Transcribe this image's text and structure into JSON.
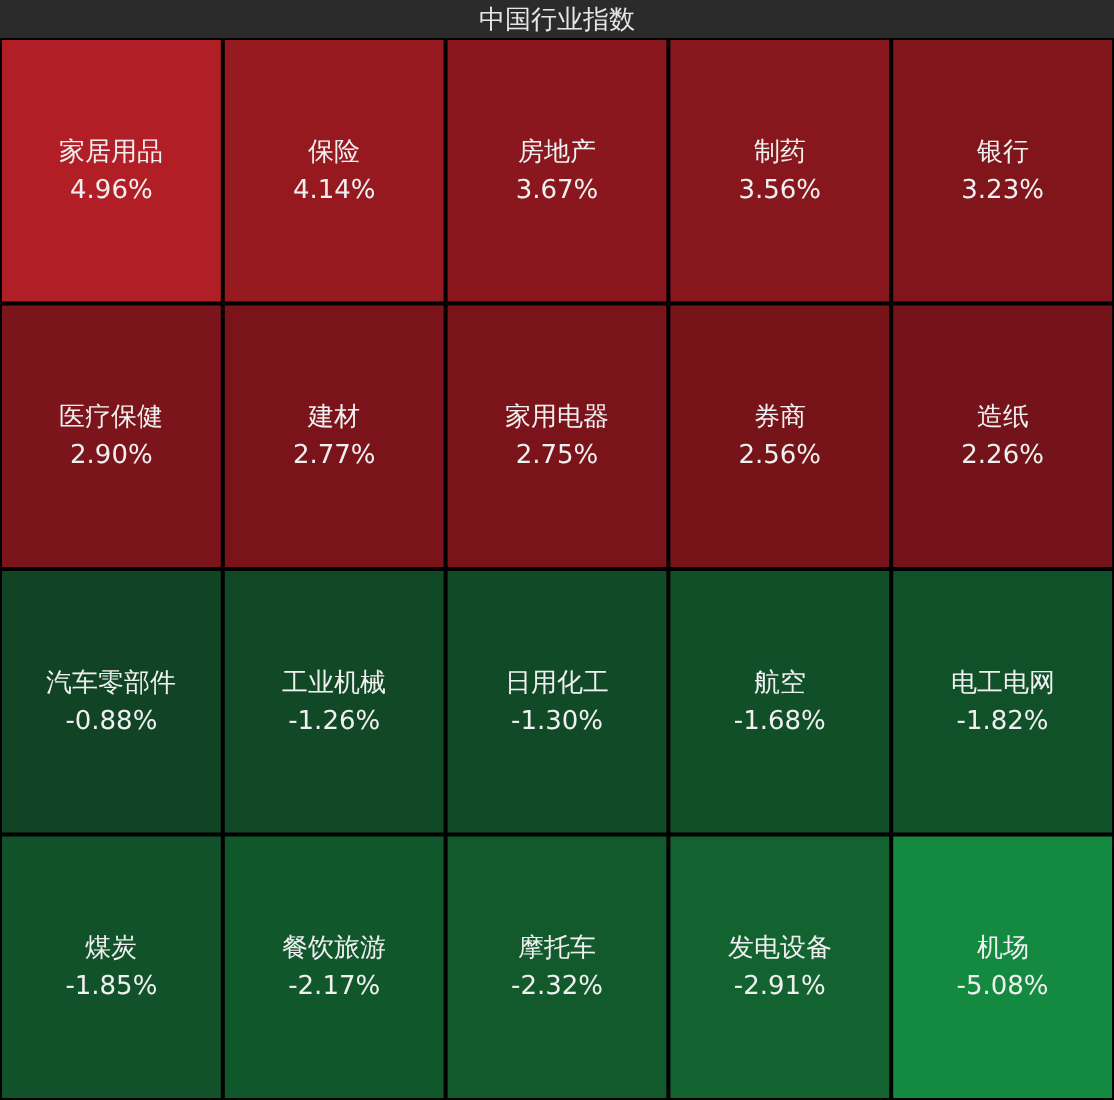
{
  "chart_data": {
    "type": "other",
    "title": "中国行业指数",
    "categories": [
      "家居用品",
      "保险",
      "房地产",
      "制药",
      "银行",
      "医疗保健",
      "建材",
      "家用电器",
      "券商",
      "造纸",
      "汽车零部件",
      "工业机械",
      "日用化工",
      "航空",
      "电工电网",
      "煤炭",
      "餐饮旅游",
      "摩托车",
      "发电设备",
      "机场"
    ],
    "values": [
      4.96,
      4.14,
      3.67,
      3.56,
      3.23,
      2.9,
      2.77,
      2.75,
      2.56,
      2.26,
      -0.88,
      -1.26,
      -1.3,
      -1.68,
      -1.82,
      -1.85,
      -2.17,
      -2.32,
      -2.91,
      -5.08
    ],
    "value_labels": [
      "4.96%",
      "4.14%",
      "3.67%",
      "3.56%",
      "3.23%",
      "2.90%",
      "2.77%",
      "2.75%",
      "2.56%",
      "2.26%",
      "-0.88%",
      "-1.26%",
      "-1.30%",
      "-1.68%",
      "-1.82%",
      "-1.85%",
      "-2.17%",
      "-2.32%",
      "-2.91%",
      "-5.08%"
    ]
  }
}
